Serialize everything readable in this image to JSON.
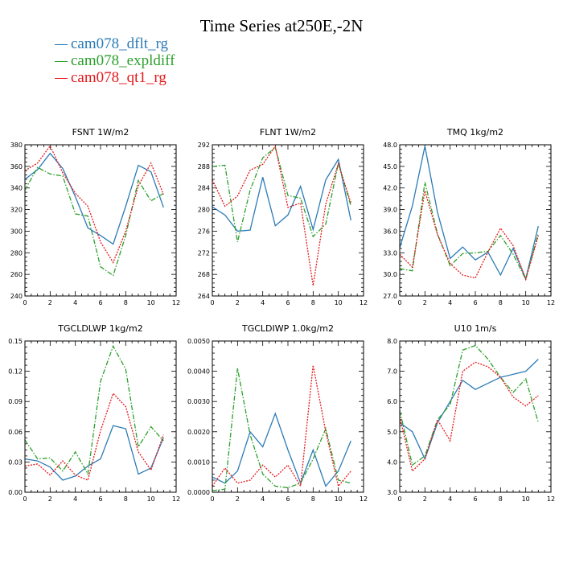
{
  "title": "Time Series at250E,-2N",
  "legend": [
    {
      "name": "cam078_dflt_rg",
      "color": "#2c7bb6"
    },
    {
      "name": "cam078_expldiff",
      "color": "#2ca02c"
    },
    {
      "name": "cam078_qt1_rg",
      "color": "#e41a1c"
    }
  ],
  "chart_data": [
    {
      "type": "line",
      "title": "FSNT   1W/m2",
      "xlim": [
        0,
        12
      ],
      "ylim": [
        240,
        380
      ],
      "xticks": [
        0,
        2,
        4,
        6,
        8,
        10,
        12
      ],
      "yticks": [
        240,
        260,
        280,
        300,
        320,
        340,
        360,
        380
      ],
      "ytick_labels": [
        "240",
        "260",
        "280",
        "300",
        "320",
        "340",
        "360",
        "380"
      ],
      "x": [
        0,
        1,
        2,
        3,
        4,
        5,
        6,
        7,
        8,
        9,
        10,
        11
      ],
      "series": [
        {
          "name": "cam078_dflt_rg",
          "values": [
            348,
            357,
            372,
            358,
            332,
            303,
            296,
            288,
            323,
            361,
            355,
            322
          ]
        },
        {
          "name": "cam078_expldiff",
          "values": [
            338,
            359,
            353,
            351,
            316,
            314,
            267,
            259,
            296,
            347,
            328,
            335
          ]
        },
        {
          "name": "cam078_qt1_rg",
          "values": [
            356,
            363,
            379,
            354,
            335,
            323,
            290,
            271,
            300,
            342,
            363,
            334
          ]
        }
      ]
    },
    {
      "type": "line",
      "title": "FLNT   1W/m2",
      "xlim": [
        0,
        12
      ],
      "ylim": [
        264,
        292
      ],
      "xticks": [
        0,
        2,
        4,
        6,
        8,
        10,
        12
      ],
      "yticks": [
        264,
        268,
        272,
        276,
        280,
        284,
        288,
        292
      ],
      "ytick_labels": [
        "264",
        "268",
        "272",
        "276",
        "280",
        "284",
        "288",
        "292"
      ],
      "x": [
        0,
        1,
        2,
        3,
        4,
        5,
        6,
        7,
        8,
        9,
        10,
        11
      ],
      "series": [
        {
          "name": "cam078_dflt_rg",
          "values": [
            280.5,
            279,
            276,
            276.2,
            286,
            277,
            279,
            284.3,
            276.3,
            285.5,
            289.3,
            278
          ]
        },
        {
          "name": "cam078_expldiff",
          "values": [
            288,
            288.2,
            274,
            283.6,
            289.6,
            291.5,
            282.6,
            282.1,
            275,
            277.3,
            288.6,
            280.7
          ]
        },
        {
          "name": "cam078_qt1_rg",
          "values": [
            285.5,
            280.6,
            282.5,
            287.3,
            288.4,
            291.7,
            280.4,
            281.2,
            265.9,
            281,
            288.5,
            281.2
          ]
        }
      ]
    },
    {
      "type": "line",
      "title": "TMQ   1kg/m2",
      "xlim": [
        0,
        12
      ],
      "ylim": [
        27,
        48
      ],
      "xticks": [
        0,
        2,
        4,
        6,
        8,
        10,
        12
      ],
      "yticks": [
        27,
        30,
        33,
        36,
        39,
        42,
        45,
        48
      ],
      "ytick_labels": [
        "27.0",
        "30.0",
        "33.0",
        "36.0",
        "39.0",
        "42.0",
        "45.0",
        "48.0"
      ],
      "x": [
        0,
        1,
        2,
        3,
        4,
        5,
        6,
        7,
        8,
        9,
        10,
        11
      ],
      "series": [
        {
          "name": "cam078_dflt_rg",
          "values": [
            33.7,
            39.5,
            47.8,
            38.6,
            32.2,
            33.8,
            32,
            33.1,
            29.9,
            33.6,
            29.4,
            36.7
          ]
        },
        {
          "name": "cam078_expldiff",
          "values": [
            30.8,
            30.5,
            42.8,
            35.6,
            31.2,
            32.9,
            33,
            33.2,
            35.4,
            32.8,
            29.3,
            35.7
          ]
        },
        {
          "name": "cam078_qt1_rg",
          "values": [
            32.8,
            31,
            41.6,
            35.5,
            31.5,
            29.9,
            29.5,
            33.1,
            36.4,
            34,
            29.3,
            35.4
          ]
        }
      ]
    },
    {
      "type": "line",
      "title": "TGCLDLWP   1kg/m2",
      "xlim": [
        0,
        12
      ],
      "ylim": [
        0,
        0.15
      ],
      "xticks": [
        0,
        2,
        4,
        6,
        8,
        10,
        12
      ],
      "yticks": [
        0,
        0.03,
        0.06,
        0.09,
        0.12,
        0.15
      ],
      "ytick_labels": [
        "0.00",
        "0.03",
        "0.06",
        "0.09",
        "0.12",
        "0.15"
      ],
      "x": [
        0,
        1,
        2,
        3,
        4,
        5,
        6,
        7,
        8,
        9,
        10,
        11
      ],
      "series": [
        {
          "name": "cam078_dflt_rg",
          "values": [
            0.033,
            0.031,
            0.025,
            0.012,
            0.016,
            0.026,
            0.033,
            0.066,
            0.063,
            0.018,
            0.024,
            0.054
          ]
        },
        {
          "name": "cam078_expldiff",
          "values": [
            0.052,
            0.033,
            0.034,
            0.021,
            0.04,
            0.018,
            0.11,
            0.145,
            0.122,
            0.045,
            0.065,
            0.051
          ]
        },
        {
          "name": "cam078_qt1_rg",
          "values": [
            0.026,
            0.028,
            0.017,
            0.031,
            0.017,
            0.012,
            0.061,
            0.098,
            0.085,
            0.04,
            0.022,
            0.057
          ]
        }
      ]
    },
    {
      "type": "line",
      "title": "TGCLDIWP   1.0kg/m2",
      "xlim": [
        0,
        12
      ],
      "ylim": [
        0,
        0.005
      ],
      "xticks": [
        0,
        2,
        4,
        6,
        8,
        10,
        12
      ],
      "yticks": [
        0,
        0.001,
        0.002,
        0.003,
        0.004,
        0.005
      ],
      "ytick_labels": [
        "0.0000",
        "0.0010",
        "0.0020",
        "0.0030",
        "0.0040",
        "0.0050"
      ],
      "x": [
        0,
        1,
        2,
        3,
        4,
        5,
        6,
        7,
        8,
        9,
        10,
        11
      ],
      "series": [
        {
          "name": "cam078_dflt_rg",
          "values": [
            0.0005,
            0.0003,
            0.0007,
            0.002,
            0.0015,
            0.0026,
            0.0014,
            0.0003,
            0.0014,
            0.0002,
            0.0007,
            0.0017
          ]
        },
        {
          "name": "cam078_expldiff",
          "values": [
            5e-05,
            0.0001,
            0.0041,
            0.0019,
            0.0006,
            0.0002,
            0.00015,
            0.0003,
            0.0011,
            0.0021,
            0.0004,
            0.0003
          ]
        },
        {
          "name": "cam078_qt1_rg",
          "values": [
            0.0002,
            0.0008,
            0.0003,
            0.0004,
            0.0009,
            0.0005,
            0.0009,
            0.0002,
            0.0042,
            0.002,
            0.0002,
            0.0007
          ]
        }
      ]
    },
    {
      "type": "line",
      "title": "U10   1m/s",
      "xlim": [
        0,
        12
      ],
      "ylim": [
        3,
        8
      ],
      "xticks": [
        0,
        2,
        4,
        6,
        8,
        10,
        12
      ],
      "yticks": [
        3,
        4,
        5,
        6,
        7,
        8
      ],
      "ytick_labels": [
        "3.0",
        "4.0",
        "5.0",
        "6.0",
        "7.0",
        "8.0"
      ],
      "x": [
        0,
        1,
        2,
        3,
        4,
        5,
        6,
        7,
        8,
        9,
        10,
        11
      ],
      "series": [
        {
          "name": "cam078_dflt_rg",
          "values": [
            5.3,
            5,
            4.1,
            5.3,
            6,
            6.7,
            6.4,
            6.6,
            6.8,
            6.9,
            7,
            7.4
          ]
        },
        {
          "name": "cam078_expldiff",
          "values": [
            5.7,
            3.9,
            4.2,
            5.4,
            5.9,
            7.7,
            7.85,
            7.4,
            6.8,
            6.3,
            6.75,
            5.3
          ]
        },
        {
          "name": "cam078_qt1_rg",
          "values": [
            5.5,
            3.7,
            4.1,
            5.4,
            4.7,
            7,
            7.3,
            7.15,
            6.8,
            6.15,
            5.85,
            6.2
          ]
        }
      ]
    }
  ]
}
